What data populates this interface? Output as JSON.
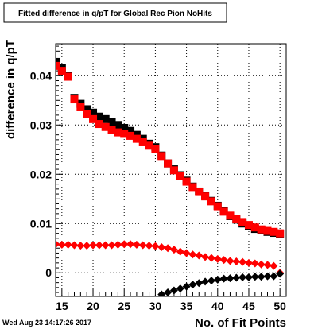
{
  "chart_data": {
    "type": "scatter",
    "title": "Fitted difference in q/pT for Global Rec Pion NoHits",
    "xlabel": "No. of Fit Points",
    "ylabel": "difference in q/pT",
    "xlim": [
      14,
      51
    ],
    "ylim": [
      -0.0048,
      0.0465
    ],
    "x_ticks": [
      {
        "value": 15,
        "label": "15"
      },
      {
        "value": 20,
        "label": "20"
      },
      {
        "value": 25,
        "label": "25"
      },
      {
        "value": 30,
        "label": "30"
      },
      {
        "value": 35,
        "label": "35"
      },
      {
        "value": 40,
        "label": "40"
      },
      {
        "value": 45,
        "label": "45"
      },
      {
        "value": 50,
        "label": "50"
      }
    ],
    "y_ticks": [
      {
        "value": 0,
        "label": "0"
      },
      {
        "value": 0.01,
        "label": "0.01"
      },
      {
        "value": 0.02,
        "label": "0.02"
      },
      {
        "value": 0.03,
        "label": "0.03"
      },
      {
        "value": 0.04,
        "label": "0.04"
      }
    ],
    "grid": true,
    "series": [
      {
        "marker": "square",
        "color": "#000000",
        "x": [
          14,
          15,
          16,
          17,
          18,
          19,
          20,
          21,
          22,
          23,
          24,
          25,
          26,
          27,
          28,
          29,
          30,
          31,
          32,
          33,
          34,
          35,
          36,
          37,
          38,
          39,
          40,
          41,
          42,
          43,
          44,
          45,
          46,
          47,
          48,
          49,
          50
        ],
        "y": [
          0.0428,
          0.0415,
          0.04,
          0.0355,
          0.0343,
          0.0332,
          0.0325,
          0.0317,
          0.0312,
          0.0306,
          0.03,
          0.0294,
          0.0288,
          0.028,
          0.0272,
          0.0262,
          0.0255,
          0.0238,
          0.0222,
          0.021,
          0.0198,
          0.0187,
          0.0175,
          0.0165,
          0.0156,
          0.0146,
          0.0136,
          0.0126,
          0.0115,
          0.0108,
          0.01,
          0.0094,
          0.0089,
          0.0086,
          0.0083,
          0.0081,
          0.0078
        ]
      },
      {
        "marker": "square",
        "color": "#ff0000",
        "x": [
          14,
          15,
          16,
          17,
          18,
          19,
          20,
          21,
          22,
          23,
          24,
          25,
          26,
          27,
          28,
          29,
          30,
          31,
          32,
          33,
          34,
          35,
          36,
          37,
          38,
          39,
          40,
          41,
          42,
          43,
          44,
          45,
          46,
          47,
          48,
          49,
          50
        ],
        "y": [
          0.042,
          0.041,
          0.0398,
          0.0352,
          0.0336,
          0.0322,
          0.0312,
          0.0302,
          0.0296,
          0.029,
          0.0285,
          0.0282,
          0.0278,
          0.0272,
          0.0265,
          0.0258,
          0.0252,
          0.0237,
          0.0222,
          0.0208,
          0.0196,
          0.0185,
          0.0174,
          0.0164,
          0.0155,
          0.0145,
          0.0135,
          0.0124,
          0.0116,
          0.011,
          0.0103,
          0.0097,
          0.0092,
          0.0088,
          0.0085,
          0.0083,
          0.008
        ]
      },
      {
        "marker": "diamond",
        "color": "#ff0000",
        "x": [
          14,
          15,
          16,
          17,
          18,
          19,
          20,
          21,
          22,
          23,
          24,
          25,
          26,
          27,
          28,
          29,
          30,
          31,
          32,
          33,
          34,
          35,
          36,
          37,
          38,
          39,
          40,
          41,
          42,
          43,
          44,
          45,
          46,
          47,
          48,
          49,
          50
        ],
        "y": [
          0.0058,
          0.0057,
          0.0057,
          0.0056,
          0.0055,
          0.0055,
          0.0056,
          0.0056,
          0.0056,
          0.0056,
          0.0057,
          0.0058,
          0.0058,
          0.0057,
          0.0056,
          0.0055,
          0.0054,
          0.0052,
          0.005,
          0.0047,
          0.0043,
          0.004,
          0.0037,
          0.0035,
          0.0032,
          0.003,
          0.0028,
          0.0026,
          0.0024,
          0.0023,
          0.0022,
          0.002,
          0.0019,
          0.0017,
          0.0016,
          0.0014,
          0.0
        ]
      },
      {
        "marker": "diamond",
        "color": "#000000",
        "x": [
          31,
          32,
          33,
          34,
          35,
          36,
          37,
          38,
          39,
          40,
          41,
          42,
          43,
          44,
          45,
          46,
          47,
          48,
          49,
          50
        ],
        "y": [
          -0.0044,
          -0.004,
          -0.0036,
          -0.0032,
          -0.0028,
          -0.0024,
          -0.0021,
          -0.0018,
          -0.0016,
          -0.0014,
          -0.0012,
          -0.0011,
          -0.001,
          -0.0009,
          -0.0009,
          -0.0008,
          -0.0008,
          -0.0007,
          -0.0007,
          -0.0002
        ]
      }
    ]
  },
  "timestamp": "Wed Aug 23 14:17:26 2017"
}
